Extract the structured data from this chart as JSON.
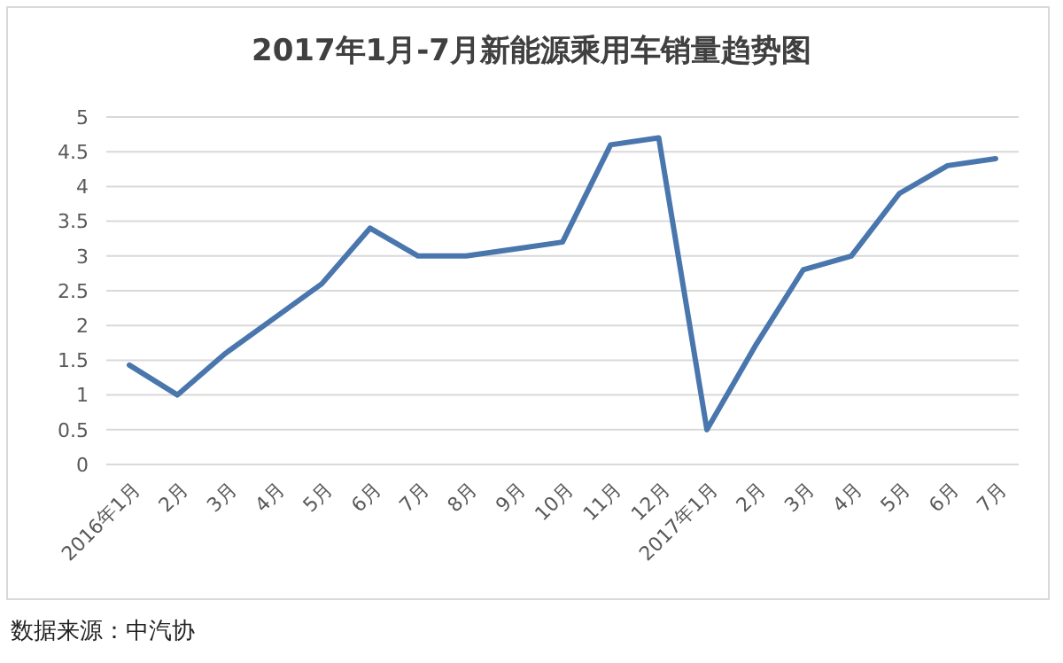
{
  "chart_data": {
    "type": "line",
    "title": "2017年1月-7月新能源乘用车销量趋势图",
    "categories": [
      "2016年1月",
      "2月",
      "3月",
      "4月",
      "5月",
      "6月",
      "7月",
      "8月",
      "9月",
      "10月",
      "11月",
      "12月",
      "2017年1月",
      "2月",
      "3月",
      "4月",
      "5月",
      "6月",
      "7月"
    ],
    "series": [
      {
        "color": "#4a76ae",
        "values": [
          1.43,
          1.0,
          1.6,
          2.1,
          2.6,
          3.4,
          3.0,
          3.0,
          3.1,
          3.2,
          4.6,
          4.7,
          0.5,
          1.7,
          2.8,
          3.0,
          3.9,
          4.3,
          4.4
        ]
      }
    ],
    "ylim": [
      0,
      5
    ],
    "yticks": [
      0,
      0.5,
      1,
      1.5,
      2,
      2.5,
      3,
      3.5,
      4,
      4.5,
      5
    ],
    "grid": "y",
    "marker": "none",
    "line_style": "solid",
    "annotations": [
      "数据来源：中汽协"
    ]
  }
}
